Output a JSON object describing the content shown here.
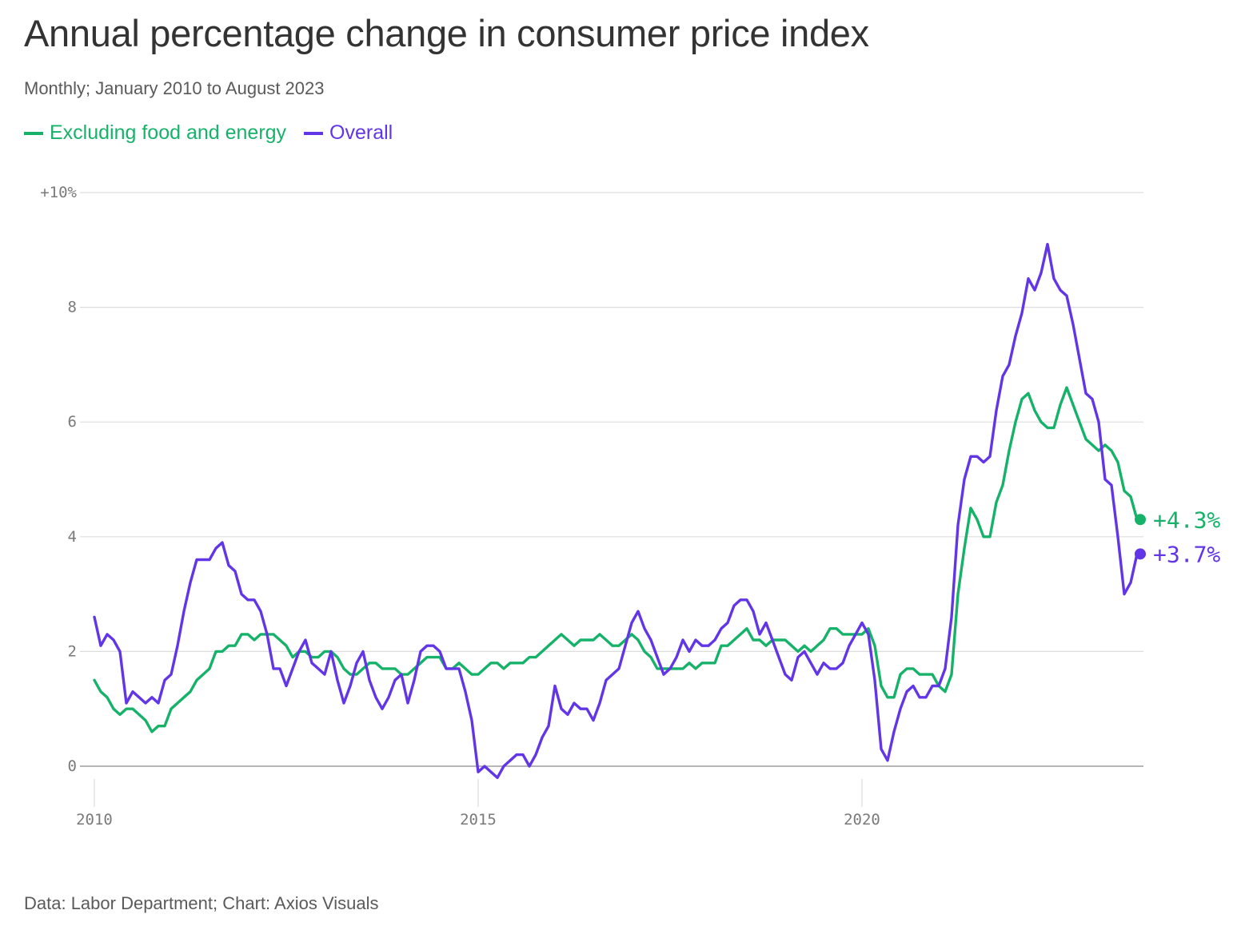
{
  "title": "Annual percentage change in consumer price index",
  "subtitle": "Monthly; January 2010 to August 2023",
  "footer": "Data: Labor Department; Chart: Axios Visuals",
  "colors": {
    "core": "#17b26a",
    "overall": "#6236e6",
    "grid": "#dddddd",
    "axis": "#8a8a8a"
  },
  "chart_data": {
    "type": "line",
    "x_start": "2010-01",
    "x_end": "2023-08",
    "ylim": [
      0,
      10
    ],
    "y_ticks": [
      {
        "value": 10,
        "label": "+10%"
      },
      {
        "value": 8,
        "label": "8"
      },
      {
        "value": 6,
        "label": "6"
      },
      {
        "value": 4,
        "label": "4"
      },
      {
        "value": 2,
        "label": "2"
      },
      {
        "value": 0,
        "label": "0"
      }
    ],
    "x_ticks": [
      {
        "value": "2010-01",
        "label": "2010"
      },
      {
        "value": "2015-01",
        "label": "2015"
      },
      {
        "value": "2020-01",
        "label": "2020"
      }
    ],
    "grid": true,
    "series": [
      {
        "name": "Excluding food and energy",
        "color": "#17b26a",
        "end_label": "+4.3%",
        "values": [
          1.5,
          1.3,
          1.2,
          1.0,
          0.9,
          1.0,
          1.0,
          0.9,
          0.8,
          0.6,
          0.7,
          0.7,
          1.0,
          1.1,
          1.2,
          1.3,
          1.5,
          1.6,
          1.7,
          2.0,
          2.0,
          2.1,
          2.1,
          2.3,
          2.3,
          2.2,
          2.3,
          2.3,
          2.3,
          2.2,
          2.1,
          1.9,
          2.0,
          2.0,
          1.9,
          1.9,
          2.0,
          2.0,
          1.9,
          1.7,
          1.6,
          1.6,
          1.7,
          1.8,
          1.8,
          1.7,
          1.7,
          1.7,
          1.6,
          1.6,
          1.7,
          1.8,
          1.9,
          1.9,
          1.9,
          1.7,
          1.7,
          1.8,
          1.7,
          1.6,
          1.6,
          1.7,
          1.8,
          1.8,
          1.7,
          1.8,
          1.8,
          1.8,
          1.9,
          1.9,
          2.0,
          2.1,
          2.2,
          2.3,
          2.2,
          2.1,
          2.2,
          2.2,
          2.2,
          2.3,
          2.2,
          2.1,
          2.1,
          2.2,
          2.3,
          2.2,
          2.0,
          1.9,
          1.7,
          1.7,
          1.7,
          1.7,
          1.7,
          1.8,
          1.7,
          1.8,
          1.8,
          1.8,
          2.1,
          2.1,
          2.2,
          2.3,
          2.4,
          2.2,
          2.2,
          2.1,
          2.2,
          2.2,
          2.2,
          2.1,
          2.0,
          2.1,
          2.0,
          2.1,
          2.2,
          2.4,
          2.4,
          2.3,
          2.3,
          2.3,
          2.3,
          2.4,
          2.1,
          1.4,
          1.2,
          1.2,
          1.6,
          1.7,
          1.7,
          1.6,
          1.6,
          1.6,
          1.4,
          1.3,
          1.6,
          3.0,
          3.8,
          4.5,
          4.3,
          4.0,
          4.0,
          4.6,
          4.9,
          5.5,
          6.0,
          6.4,
          6.5,
          6.2,
          6.0,
          5.9,
          5.9,
          6.3,
          6.6,
          6.3,
          6.0,
          5.7,
          5.6,
          5.5,
          5.6,
          5.5,
          5.3,
          4.8,
          4.7,
          4.3
        ]
      },
      {
        "name": "Overall",
        "color": "#6236e6",
        "end_label": "+3.7%",
        "values": [
          2.6,
          2.1,
          2.3,
          2.2,
          2.0,
          1.1,
          1.3,
          1.2,
          1.1,
          1.2,
          1.1,
          1.5,
          1.6,
          2.1,
          2.7,
          3.2,
          3.6,
          3.6,
          3.6,
          3.8,
          3.9,
          3.5,
          3.4,
          3.0,
          2.9,
          2.9,
          2.7,
          2.3,
          1.7,
          1.7,
          1.4,
          1.7,
          2.0,
          2.2,
          1.8,
          1.7,
          1.6,
          2.0,
          1.5,
          1.1,
          1.4,
          1.8,
          2.0,
          1.5,
          1.2,
          1.0,
          1.2,
          1.5,
          1.6,
          1.1,
          1.5,
          2.0,
          2.1,
          2.1,
          2.0,
          1.7,
          1.7,
          1.7,
          1.3,
          0.8,
          -0.1,
          0.0,
          -0.1,
          -0.2,
          0.0,
          0.1,
          0.2,
          0.2,
          0.0,
          0.2,
          0.5,
          0.7,
          1.4,
          1.0,
          0.9,
          1.1,
          1.0,
          1.0,
          0.8,
          1.1,
          1.5,
          1.6,
          1.7,
          2.1,
          2.5,
          2.7,
          2.4,
          2.2,
          1.9,
          1.6,
          1.7,
          1.9,
          2.2,
          2.0,
          2.2,
          2.1,
          2.1,
          2.2,
          2.4,
          2.5,
          2.8,
          2.9,
          2.9,
          2.7,
          2.3,
          2.5,
          2.2,
          1.9,
          1.6,
          1.5,
          1.9,
          2.0,
          1.8,
          1.6,
          1.8,
          1.7,
          1.7,
          1.8,
          2.1,
          2.3,
          2.5,
          2.3,
          1.5,
          0.3,
          0.1,
          0.6,
          1.0,
          1.3,
          1.4,
          1.2,
          1.2,
          1.4,
          1.4,
          1.7,
          2.6,
          4.2,
          5.0,
          5.4,
          5.4,
          5.3,
          5.4,
          6.2,
          6.8,
          7.0,
          7.5,
          7.9,
          8.5,
          8.3,
          8.6,
          9.1,
          8.5,
          8.3,
          8.2,
          7.7,
          7.1,
          6.5,
          6.4,
          6.0,
          5.0,
          4.9,
          4.0,
          3.0,
          3.2,
          3.7
        ]
      }
    ]
  }
}
